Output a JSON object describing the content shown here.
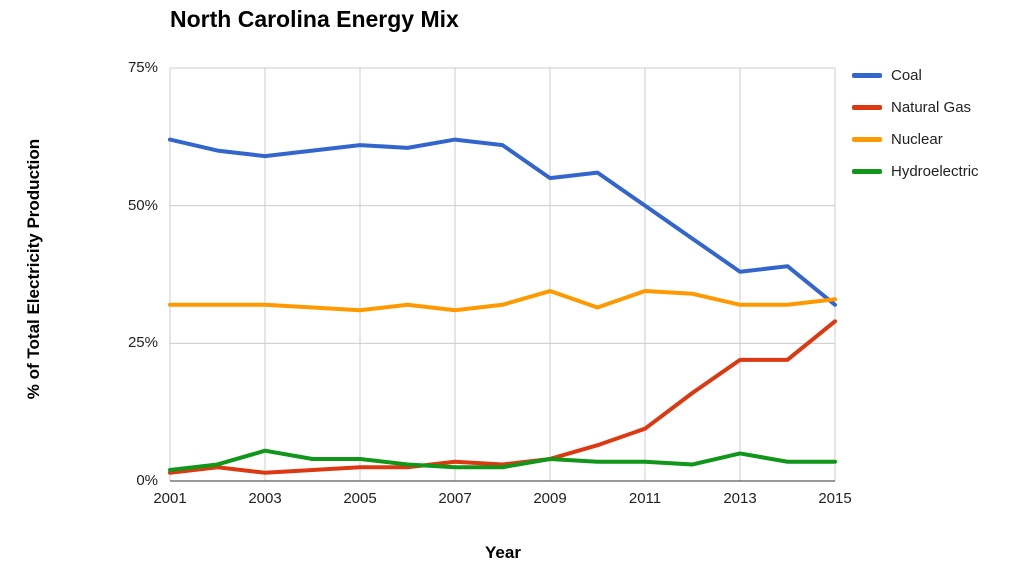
{
  "chart_data": {
    "type": "line",
    "title": "North Carolina Energy Mix",
    "xlabel": "Year",
    "ylabel": "% of Total Electricity Production",
    "x": [
      2001,
      2002,
      2003,
      2004,
      2005,
      2006,
      2007,
      2008,
      2009,
      2010,
      2011,
      2012,
      2013,
      2014,
      2015
    ],
    "x_tick_labels": [
      "2001",
      "2003",
      "2005",
      "2007",
      "2009",
      "2011",
      "2013",
      "2015"
    ],
    "y_ticks": [
      0,
      25,
      50,
      75
    ],
    "y_tick_labels": [
      "0%",
      "25%",
      "50%",
      "75%"
    ],
    "xlim": [
      2001,
      2015
    ],
    "ylim": [
      0,
      75
    ],
    "grid": true,
    "legend_position": "right",
    "axis_color": "#333333",
    "gridline_color": "#cccccc",
    "series": [
      {
        "name": "Coal",
        "color": "#3366cc",
        "values": [
          62,
          60,
          59,
          60,
          61,
          60.5,
          62,
          61,
          55,
          56,
          50,
          44,
          38,
          39,
          32
        ]
      },
      {
        "name": "Natural Gas",
        "color": "#dc3912",
        "values": [
          1.5,
          2.5,
          1.5,
          2,
          2.5,
          2.5,
          3.5,
          3,
          4,
          6.5,
          9.5,
          16,
          22,
          22,
          29
        ]
      },
      {
        "name": "Nuclear",
        "color": "#ff9900",
        "values": [
          32,
          32,
          32,
          31.5,
          31,
          32,
          31,
          32,
          34.5,
          31.5,
          34.5,
          34,
          32,
          32,
          33
        ]
      },
      {
        "name": "Hydroelectric",
        "color": "#109618",
        "values": [
          2,
          3,
          5.5,
          4,
          4,
          3,
          2.5,
          2.5,
          4,
          3.5,
          3.5,
          3,
          5,
          3.5,
          3.5
        ]
      }
    ]
  }
}
